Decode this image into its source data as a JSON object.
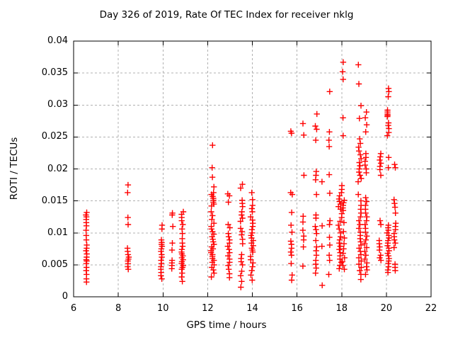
{
  "chart_data": {
    "type": "scatter",
    "title": "Day 326 of 2019, Rate Of TEC Index for receiver nklg",
    "xlabel": "GPS time / hours",
    "ylabel": "ROTI / TECUs",
    "xlim": [
      6,
      22
    ],
    "ylim": [
      0,
      0.04
    ],
    "xticks": {
      "values": [
        6,
        8,
        10,
        12,
        14,
        16,
        18,
        20,
        22
      ],
      "labels": [
        "6",
        "8",
        "10",
        "12",
        "14",
        "16",
        "18",
        "20",
        "22"
      ]
    },
    "yticks": {
      "values": [
        0,
        0.005,
        0.01,
        0.015,
        0.02,
        0.025,
        0.03,
        0.035,
        0.04
      ],
      "labels": [
        "0",
        "0.005",
        "0.01",
        "0.015",
        "0.02",
        "0.025",
        "0.03",
        "0.035",
        "0.04"
      ]
    },
    "grid": true,
    "legend": "none",
    "marker": {
      "shape": "plus",
      "color": "#ff0000"
    },
    "colors": {
      "border": "#000000",
      "grid": "#b0b0b0",
      "text": "#000000",
      "background": "#ffffff"
    },
    "series": [
      {
        "name": "ROTI",
        "clusters": [
          {
            "hour": 6.57,
            "spread": 0.02,
            "values": [
              0.0132,
              0.0128,
              0.0125,
              0.0121,
              0.0116,
              0.0111,
              0.0104,
              0.0096,
              0.0089,
              0.0081,
              0.0076,
              0.0072,
              0.0067,
              0.0062,
              0.0058,
              0.0056,
              0.0052,
              0.0046,
              0.0041,
              0.0035,
              0.0028,
              0.0023
            ]
          },
          {
            "hour": 8.44,
            "spread": 0.03,
            "values": [
              0.0175,
              0.0163,
              0.0124,
              0.0113,
              0.0076,
              0.0071,
              0.0066,
              0.0062,
              0.0059,
              0.0056,
              0.0052,
              0.0047,
              0.0043
            ]
          },
          {
            "hour": 9.93,
            "spread": 0.03,
            "values": [
              0.0112,
              0.0106,
              0.0089,
              0.0085,
              0.0082,
              0.0079,
              0.0075,
              0.0071,
              0.0066,
              0.0062,
              0.0057,
              0.0052,
              0.0047,
              0.0043,
              0.0038,
              0.0033,
              0.0028
            ]
          },
          {
            "hour": 10.42,
            "spread": 0.03,
            "values": [
              0.0131,
              0.0128,
              0.011,
              0.0084,
              0.0073,
              0.0057,
              0.0053,
              0.0049,
              0.0044
            ]
          },
          {
            "hour": 10.88,
            "spread": 0.05,
            "values": [
              0.0133,
              0.0129,
              0.0124,
              0.0119,
              0.0113,
              0.0106,
              0.0099,
              0.0091,
              0.0084,
              0.0079,
              0.0074,
              0.007,
              0.0067,
              0.0064,
              0.0061,
              0.0058,
              0.0055,
              0.0052,
              0.0049,
              0.0046,
              0.0043,
              0.0037,
              0.0031,
              0.0024
            ]
          },
          {
            "hour": 12.22,
            "spread": 0.07,
            "values": [
              0.0237,
              0.0202,
              0.0187,
              0.0172,
              0.0163,
              0.016,
              0.0157,
              0.0154,
              0.0151,
              0.0148,
              0.0145,
              0.0142,
              0.0133,
              0.0127,
              0.0121,
              0.0115,
              0.011,
              0.0106,
              0.0102,
              0.0098,
              0.0094,
              0.009,
              0.0086,
              0.0082,
              0.0078,
              0.0075,
              0.0072,
              0.0069,
              0.0066,
              0.0063,
              0.006,
              0.0057,
              0.0054,
              0.005,
              0.0046,
              0.0042,
              0.0037,
              0.0031
            ]
          },
          {
            "hour": 12.95,
            "spread": 0.05,
            "values": [
              0.0161,
              0.0158,
              0.0148,
              0.0113,
              0.0108,
              0.0099,
              0.0094,
              0.0089,
              0.0084,
              0.0079,
              0.0074,
              0.0069,
              0.0064,
              0.0059,
              0.0054,
              0.0049,
              0.0043,
              0.0036,
              0.003
            ]
          },
          {
            "hour": 13.52,
            "spread": 0.05,
            "values": [
              0.0176,
              0.017,
              0.0151,
              0.0146,
              0.0141,
              0.0133,
              0.0128,
              0.0123,
              0.0118,
              0.0107,
              0.0102,
              0.0097,
              0.009,
              0.0083,
              0.0066,
              0.006,
              0.0055,
              0.005,
              0.004,
              0.0033,
              0.0024,
              0.0015
            ]
          },
          {
            "hour": 13.98,
            "spread": 0.06,
            "values": [
              0.0163,
              0.0152,
              0.0143,
              0.0138,
              0.0133,
              0.0125,
              0.012,
              0.0115,
              0.011,
              0.0105,
              0.01,
              0.0096,
              0.0092,
              0.0088,
              0.0084,
              0.008,
              0.0076,
              0.0073,
              0.007,
              0.0063,
              0.0058,
              0.0053,
              0.0047,
              0.0041,
              0.0034,
              0.0026
            ]
          },
          {
            "hour": 15.75,
            "spread": 0.04,
            "values": [
              0.0259,
              0.0256,
              0.0163,
              0.016,
              0.0132,
              0.0112,
              0.0101,
              0.0087,
              0.0082,
              0.0076,
              0.007,
              0.0065,
              0.0052,
              0.0034,
              0.0026
            ]
          },
          {
            "hour": 16.28,
            "spread": 0.03,
            "values": [
              0.0271,
              0.0253,
              0.019,
              0.0126,
              0.0117,
              0.0104,
              0.0095,
              0.0089,
              0.0078,
              0.0048
            ]
          },
          {
            "hour": 16.85,
            "spread": 0.04,
            "values": [
              0.0286,
              0.0267,
              0.0262,
              0.0245,
              0.0196,
              0.019,
              0.0183,
              0.016,
              0.0128,
              0.0123,
              0.011,
              0.0105,
              0.0099,
              0.0088,
              0.0078,
              0.0072,
              0.0065,
              0.0057,
              0.0051,
              0.0045,
              0.0037
            ]
          },
          {
            "hour": 17.12,
            "spread": 0.02,
            "values": [
              0.018,
              0.0111,
              0.0079,
              0.0018
            ]
          },
          {
            "hour": 17.45,
            "spread": 0.03,
            "values": [
              0.0321,
              0.0258,
              0.0245,
              0.0235,
              0.0191,
              0.0162,
              0.0119,
              0.0113,
              0.0093,
              0.0081,
              0.0065,
              0.0057,
              0.0035
            ]
          },
          {
            "hour": 17.93,
            "spread": 0.08,
            "values": [
              0.0174,
              0.0168,
              0.0163,
              0.0158,
              0.0153,
              0.0149,
              0.0145,
              0.0141,
              0.0137,
              0.013,
              0.0124,
              0.0118,
              0.0112,
              0.0106,
              0.01,
              0.0094,
              0.0089,
              0.0084,
              0.0079,
              0.0074,
              0.0069,
              0.0064,
              0.0059,
              0.0054,
              0.0049,
              0.0044
            ]
          },
          {
            "hour": 18.08,
            "spread": 0.05,
            "values": [
              0.0367,
              0.0352,
              0.034,
              0.028,
              0.0252,
              0.0151,
              0.0147,
              0.0143,
              0.0139,
              0.0135,
              0.0116,
              0.0102,
              0.0092,
              0.0083,
              0.0075,
              0.0068,
              0.0061,
              0.0055,
              0.0049,
              0.0043
            ]
          },
          {
            "hour": 18.8,
            "spread": 0.08,
            "values": [
              0.0363,
              0.0333,
              0.0299,
              0.0279,
              0.0247,
              0.024,
              0.0234,
              0.0228,
              0.0222,
              0.0216,
              0.021,
              0.0205,
              0.02,
              0.0195,
              0.019,
              0.0185,
              0.018,
              0.016,
              0.015,
              0.0143,
              0.0137,
              0.0131,
              0.0125,
              0.0119,
              0.0113,
              0.0107,
              0.0101,
              0.0096,
              0.0091,
              0.0086,
              0.0081,
              0.0076,
              0.0071,
              0.0066,
              0.0061,
              0.0056,
              0.0051,
              0.0046,
              0.0041,
              0.0035,
              0.0027
            ]
          },
          {
            "hour": 19.08,
            "spread": 0.06,
            "values": [
              0.0289,
              0.028,
              0.0269,
              0.0258,
              0.0224,
              0.0218,
              0.0212,
              0.0206,
              0.02,
              0.0194,
              0.0155,
              0.0149,
              0.0143,
              0.0137,
              0.0131,
              0.0125,
              0.0119,
              0.0113,
              0.0107,
              0.0101,
              0.0095,
              0.0089,
              0.0083,
              0.0077,
              0.0071,
              0.0065,
              0.0059,
              0.0053,
              0.0047,
              0.0042,
              0.0035
            ]
          },
          {
            "hour": 19.72,
            "spread": 0.04,
            "values": [
              0.0224,
              0.0219,
              0.0214,
              0.0209,
              0.0204,
              0.0199,
              0.019,
              0.0119,
              0.0113,
              0.0088,
              0.0083,
              0.0078,
              0.0073,
              0.0065,
              0.0061,
              0.0057
            ]
          },
          {
            "hour": 20.08,
            "spread": 0.05,
            "values": [
              0.0326,
              0.0321,
              0.0313,
              0.0292,
              0.0289,
              0.0286,
              0.0284,
              0.0282,
              0.0272,
              0.0268,
              0.0263,
              0.0257,
              0.0252,
              0.0218,
              0.0202,
              0.0112,
              0.0108,
              0.0104,
              0.01,
              0.0096,
              0.0092,
              0.0088,
              0.0084,
              0.008,
              0.0076,
              0.0072,
              0.0068,
              0.0064,
              0.006,
              0.0056,
              0.0052,
              0.0047,
              0.0042,
              0.0038
            ]
          },
          {
            "hour": 20.38,
            "spread": 0.04,
            "values": [
              0.0207,
              0.0202,
              0.0152,
              0.0146,
              0.014,
              0.0131,
              0.0115,
              0.011,
              0.0105,
              0.0099,
              0.0094,
              0.0089,
              0.0084,
              0.0077,
              0.0051,
              0.0046,
              0.0041
            ]
          }
        ]
      }
    ]
  }
}
